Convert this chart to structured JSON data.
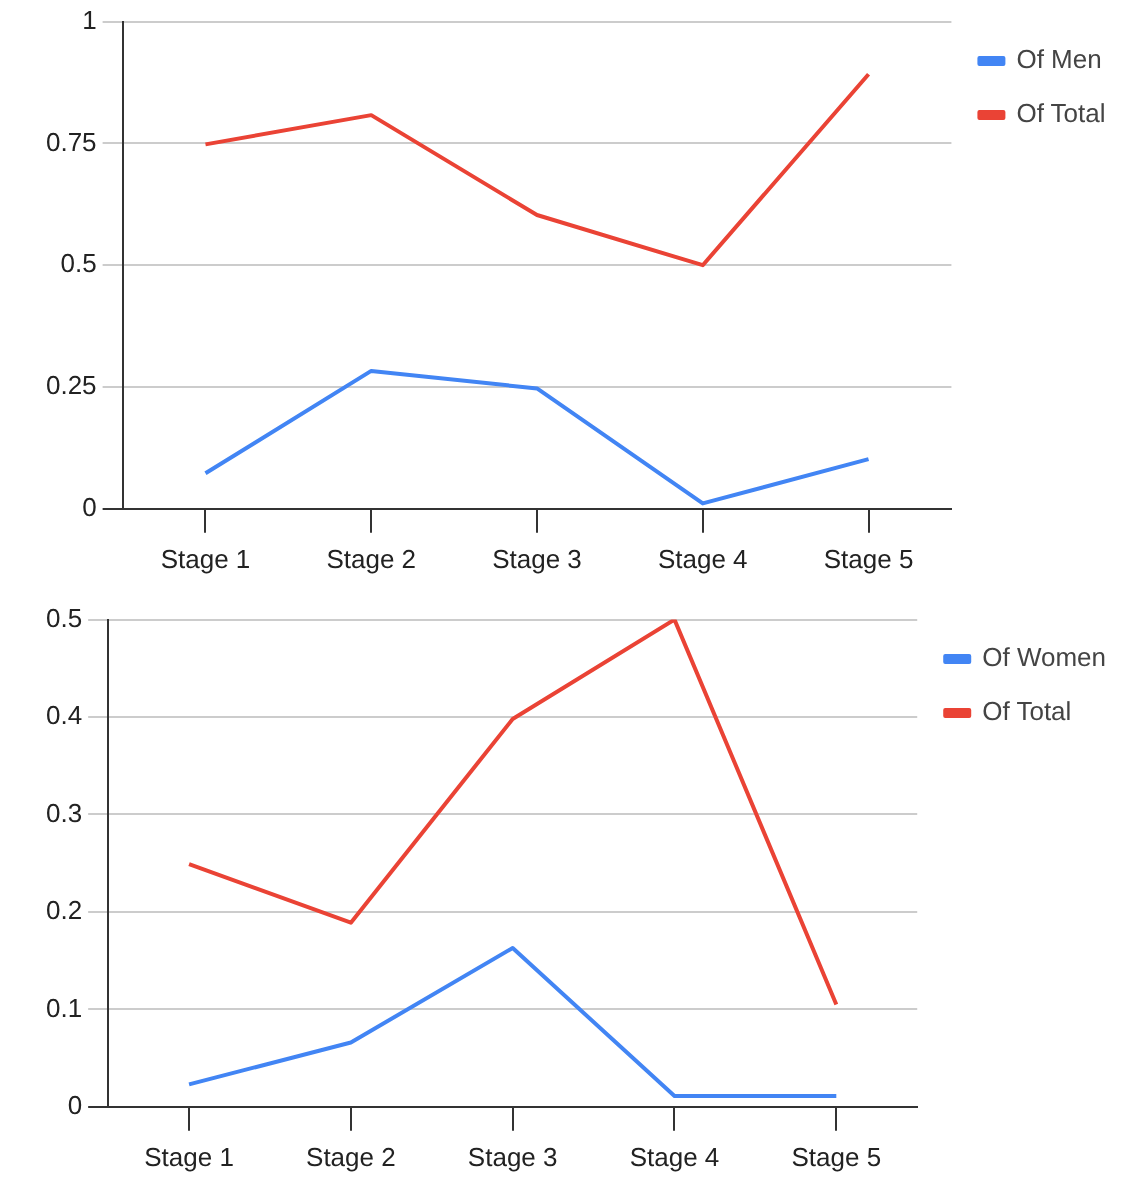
{
  "chart_data": [
    {
      "type": "line",
      "categories": [
        "Stage 1",
        "Stage 2",
        "Stage 3",
        "Stage 4",
        "Stage 5"
      ],
      "series": [
        {
          "name": "Of Men",
          "color": "#4285f4",
          "values": [
            0.073,
            0.283,
            0.247,
            0.011,
            0.102
          ]
        },
        {
          "name": "Of Total",
          "color": "#ea4335",
          "values": [
            0.748,
            0.808,
            0.603,
            0.5,
            0.892
          ]
        }
      ],
      "ylim": [
        0,
        1
      ],
      "yticks": [
        0,
        0.25,
        0.5,
        0.75,
        1
      ],
      "grid": "y",
      "legend": "top right",
      "marker": "none"
    },
    {
      "type": "line",
      "categories": [
        "Stage 1",
        "Stage 2",
        "Stage 3",
        "Stage 4",
        "Stage 5"
      ],
      "series": [
        {
          "name": "Of Women",
          "color": "#4285f4",
          "values": [
            0.023,
            0.066,
            0.163,
            0.011,
            0.011
          ]
        },
        {
          "name": "Of Total",
          "color": "#ea4335",
          "values": [
            0.249,
            0.189,
            0.398,
            0.5,
            0.105
          ]
        }
      ],
      "ylim": [
        0,
        0.5
      ],
      "yticks": [
        0,
        0.1,
        0.2,
        0.3,
        0.4,
        0.5
      ],
      "grid": "y",
      "legend": "top right",
      "marker": "none"
    }
  ]
}
